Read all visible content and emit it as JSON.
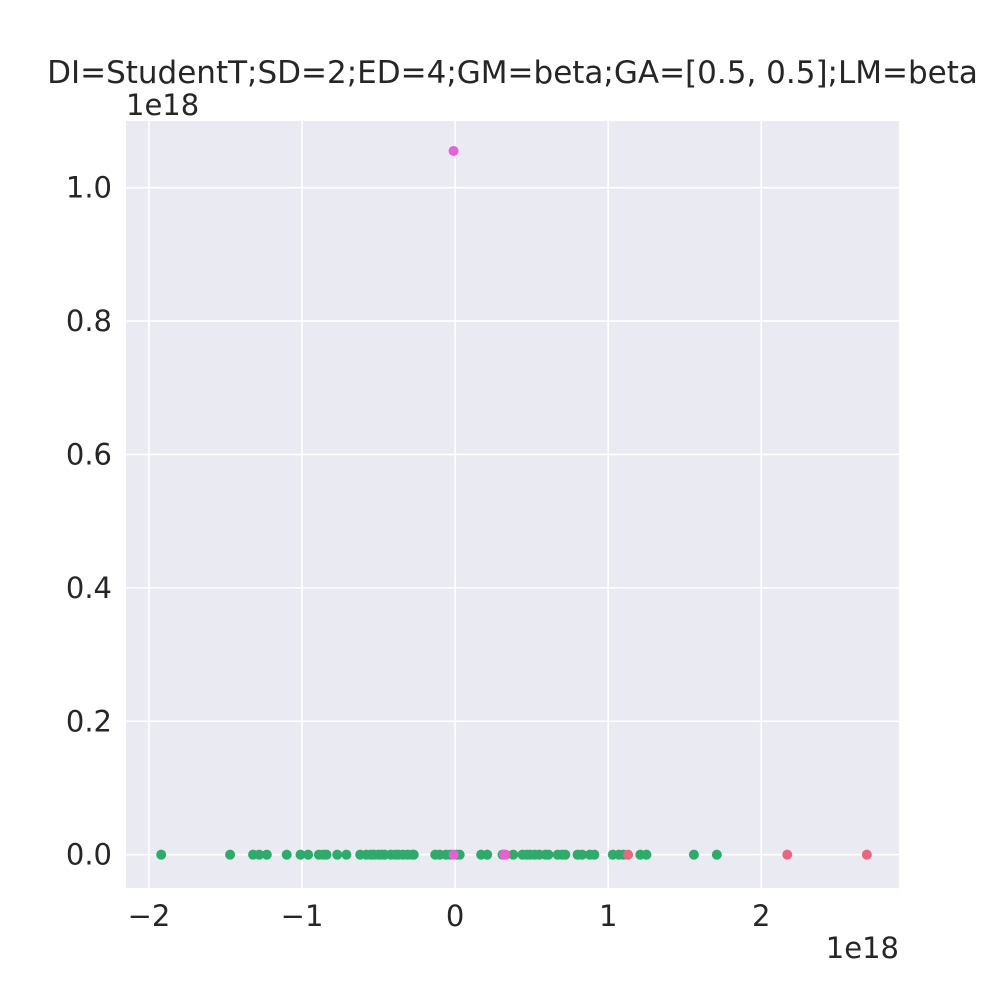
{
  "chart_data": {
    "type": "scatter",
    "title": "DI=StudentT;SD=2;ED=4;GM=beta;GA=[0.5, 0.5];LM=beta",
    "xlabel": "",
    "ylabel": "",
    "x_offset_label": "1e18",
    "y_offset_label": "1e18",
    "xlim": [
      -2.15,
      2.9
    ],
    "ylim": [
      -0.05,
      1.1
    ],
    "xticks": [
      -2,
      -1,
      0,
      1,
      2
    ],
    "xtick_labels": [
      "−2",
      "−1",
      "0",
      "1",
      "2"
    ],
    "yticks": [
      0.0,
      0.2,
      0.4,
      0.6,
      0.8,
      1.0
    ],
    "ytick_labels": [
      "0.0",
      "0.2",
      "0.4",
      "0.6",
      "0.8",
      "1.0"
    ],
    "grid": true,
    "background": "#eaeaf2",
    "series": [
      {
        "color": "#2eab6a",
        "points": [
          [
            -1.92,
            0
          ],
          [
            -1.47,
            0
          ],
          [
            -1.32,
            0
          ],
          [
            -1.28,
            0
          ],
          [
            -1.23,
            0
          ],
          [
            -1.1,
            0
          ],
          [
            -1.01,
            0
          ],
          [
            -0.96,
            0
          ],
          [
            -0.89,
            0
          ],
          [
            -0.86,
            0
          ],
          [
            -0.84,
            0
          ],
          [
            -0.77,
            0
          ],
          [
            -0.71,
            0
          ],
          [
            -0.62,
            0
          ],
          [
            -0.58,
            0
          ],
          [
            -0.55,
            0
          ],
          [
            -0.53,
            0
          ],
          [
            -0.5,
            0
          ],
          [
            -0.48,
            0
          ],
          [
            -0.46,
            0
          ],
          [
            -0.42,
            0
          ],
          [
            -0.39,
            0
          ],
          [
            -0.37,
            0
          ],
          [
            -0.34,
            0
          ],
          [
            -0.31,
            0
          ],
          [
            -0.28,
            0
          ],
          [
            -0.27,
            0
          ],
          [
            -0.13,
            0
          ],
          [
            -0.1,
            0
          ],
          [
            -0.06,
            0
          ],
          [
            -0.03,
            0
          ],
          [
            0.01,
            0
          ],
          [
            0.03,
            0
          ],
          [
            0.17,
            0
          ],
          [
            0.21,
            0
          ],
          [
            0.31,
            0
          ],
          [
            0.38,
            0
          ],
          [
            0.44,
            0
          ],
          [
            0.47,
            0
          ],
          [
            0.49,
            0
          ],
          [
            0.52,
            0
          ],
          [
            0.55,
            0
          ],
          [
            0.59,
            0
          ],
          [
            0.61,
            0
          ],
          [
            0.67,
            0
          ],
          [
            0.7,
            0
          ],
          [
            0.72,
            0
          ],
          [
            0.8,
            0
          ],
          [
            0.83,
            0
          ],
          [
            0.88,
            0
          ],
          [
            0.91,
            0
          ],
          [
            1.03,
            0
          ],
          [
            1.07,
            0
          ],
          [
            1.1,
            0
          ],
          [
            1.21,
            0
          ],
          [
            1.25,
            0
          ],
          [
            1.56,
            0
          ],
          [
            1.71,
            0
          ]
        ]
      },
      {
        "color": "#e8687f",
        "points": [
          [
            0.33,
            0
          ],
          [
            1.13,
            0
          ],
          [
            2.17,
            0
          ],
          [
            2.69,
            0
          ]
        ]
      },
      {
        "color": "#e85fd9",
        "points": [
          [
            -0.01,
            1.055
          ],
          [
            -0.01,
            0
          ],
          [
            0.32,
            0
          ]
        ]
      }
    ]
  }
}
